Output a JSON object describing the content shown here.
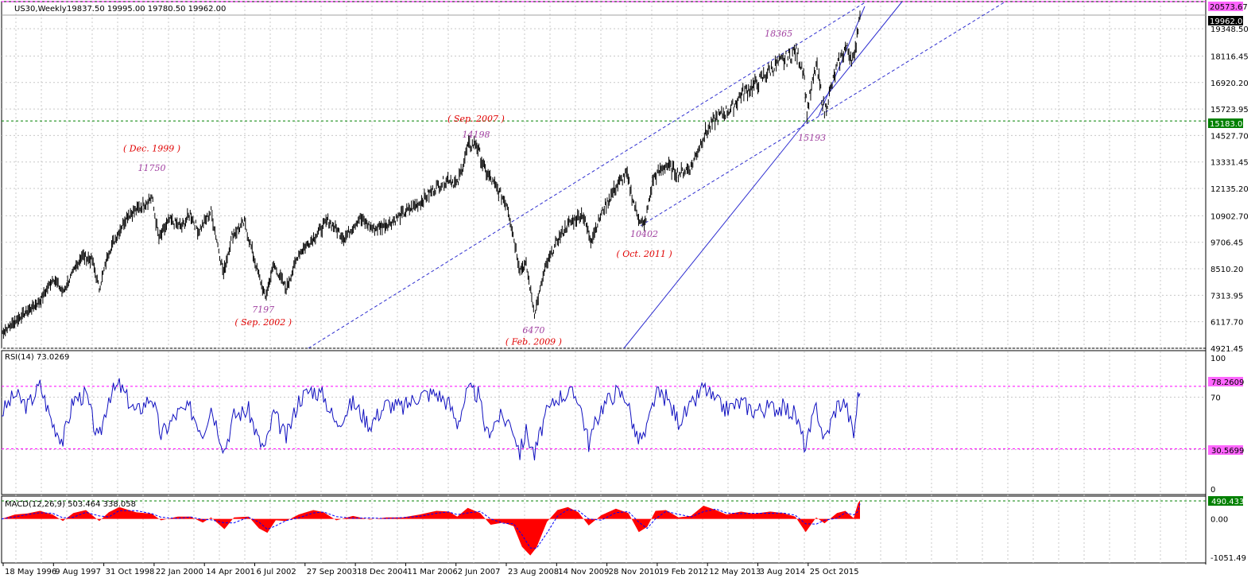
{
  "window": {
    "symbol_label": "US30,Weekly",
    "ohlc_text": "19837.50 19995.00 19780.50 19962.00"
  },
  "colors": {
    "background": "#ffffff",
    "grid": "#c0c0c0",
    "candles": "#000000",
    "trendline": "#2f2fd0",
    "resistance": "#ff00ff",
    "support": "#008000",
    "rsi_line": "#1010c0",
    "macd_hist": "#ff0000",
    "macd_signal": "#0000ff",
    "annotation_value": "#a040a0",
    "annotation_date": "#e00000",
    "price_tag_bg": "#000000",
    "green_tag_bg": "#008000",
    "magenta_tag_bg": "#ff66ff"
  },
  "chart_data": [
    {
      "type": "line",
      "title": "US30,Weekly",
      "ylim": [
        4921.45,
        20573.67
      ],
      "y_ticks": [
        "19348.50",
        "18116.45",
        "16920.20",
        "15723.95",
        "14527.70",
        "13331.45",
        "12135.20",
        "10902.70",
        "9706.45",
        "8510.20",
        "7313.95",
        "6117.70",
        "4921.45"
      ],
      "x_ticks": [
        "18 May 1996",
        "9 Aug 1997",
        "31 Oct 1998",
        "22 Jan 2000",
        "14 Apr 2001",
        "6 Jul 2002",
        "27 Sep 2003",
        "18 Dec 2004",
        "11 Mar 2006",
        "2 Jun 2007",
        "23 Aug 2008",
        "14 Nov 2009",
        "28 Nov 2010",
        "19 Feb 2012",
        "12 May 2013",
        "3 Aug 2014",
        "25 Oct 2015"
      ],
      "x_range": [
        1996.38,
        2016.95
      ],
      "series": [
        {
          "name": "",
          "points": [
            [
              1996.38,
              5600
            ],
            [
              1996.9,
              6450
            ],
            [
              1997.3,
              7050
            ],
            [
              1997.62,
              8100
            ],
            [
              1997.85,
              7450
            ],
            [
              1998.3,
              9100
            ],
            [
              1998.55,
              8900
            ],
            [
              1998.72,
              7600
            ],
            [
              1998.95,
              9300
            ],
            [
              1999.4,
              10950
            ],
            [
              1999.65,
              11200
            ],
            [
              1999.98,
              11750
            ],
            [
              2000.15,
              9850
            ],
            [
              2000.4,
              10700
            ],
            [
              2000.7,
              10400
            ],
            [
              2000.9,
              11000
            ],
            [
              2001.1,
              10200
            ],
            [
              2001.4,
              11100
            ],
            [
              2001.7,
              8300
            ],
            [
              2001.9,
              10000
            ],
            [
              2002.2,
              10600
            ],
            [
              2002.5,
              8500
            ],
            [
              2002.7,
              7200
            ],
            [
              2002.9,
              8700
            ],
            [
              2003.2,
              7600
            ],
            [
              2003.5,
              9200
            ],
            [
              2003.9,
              10000
            ],
            [
              2004.2,
              10700
            ],
            [
              2004.6,
              9900
            ],
            [
              2004.95,
              10800
            ],
            [
              2005.3,
              10300
            ],
            [
              2005.7,
              10600
            ],
            [
              2006.0,
              11000
            ],
            [
              2006.4,
              11500
            ],
            [
              2006.8,
              12200
            ],
            [
              2007.1,
              12600
            ],
            [
              2007.3,
              12300
            ],
            [
              2007.55,
              14000
            ],
            [
              2007.75,
              14198
            ],
            [
              2007.95,
              13000
            ],
            [
              2008.15,
              12400
            ],
            [
              2008.5,
              11400
            ],
            [
              2008.8,
              8500
            ],
            [
              2008.95,
              8700
            ],
            [
              2009.15,
              6470
            ],
            [
              2009.4,
              8500
            ],
            [
              2009.7,
              9800
            ],
            [
              2009.95,
              10500
            ],
            [
              2010.3,
              11000
            ],
            [
              2010.5,
              9800
            ],
            [
              2010.8,
              11200
            ],
            [
              2011.1,
              12200
            ],
            [
              2011.35,
              12800
            ],
            [
              2011.6,
              11000
            ],
            [
              2011.78,
              10402
            ],
            [
              2012.0,
              12600
            ],
            [
              2012.3,
              13200
            ],
            [
              2012.6,
              12800
            ],
            [
              2012.9,
              13100
            ],
            [
              2013.2,
              14500
            ],
            [
              2013.5,
              15300
            ],
            [
              2013.9,
              15800
            ],
            [
              2014.1,
              16400
            ],
            [
              2014.5,
              16900
            ],
            [
              2014.85,
              17600
            ],
            [
              2015.2,
              18000
            ],
            [
              2015.4,
              18365
            ],
            [
              2015.6,
              17500
            ],
            [
              2015.68,
              15600
            ],
            [
              2015.9,
              17700
            ],
            [
              2016.1,
              15600
            ],
            [
              2016.4,
              17600
            ],
            [
              2016.6,
              18500
            ],
            [
              2016.75,
              18100
            ],
            [
              2016.82,
              17900
            ],
            [
              2016.88,
              19200
            ],
            [
              2016.95,
              19962
            ]
          ]
        }
      ]
    },
    {
      "type": "line",
      "title": "RSI(14) 73.0269",
      "ylim": [
        0,
        100
      ],
      "y_ticks": [
        "100",
        "70",
        "0"
      ],
      "levels": [
        78.2609,
        30.5699
      ],
      "series": [
        {
          "name": "",
          "points": [
            [
              1996.38,
              58
            ],
            [
              1996.7,
              72
            ],
            [
              1997.0,
              63
            ],
            [
              1997.3,
              79
            ],
            [
              1997.6,
              50
            ],
            [
              1997.85,
              37
            ],
            [
              1998.1,
              68
            ],
            [
              1998.4,
              72
            ],
            [
              1998.7,
              36
            ],
            [
              1998.95,
              71
            ],
            [
              1999.2,
              79
            ],
            [
              1999.6,
              58
            ],
            [
              1999.98,
              71
            ],
            [
              2000.2,
              41
            ],
            [
              2000.6,
              58
            ],
            [
              2000.9,
              61
            ],
            [
              2001.2,
              43
            ],
            [
              2001.4,
              63
            ],
            [
              2001.72,
              30
            ],
            [
              2001.95,
              56
            ],
            [
              2002.3,
              60
            ],
            [
              2002.55,
              36
            ],
            [
              2002.7,
              31
            ],
            [
              2002.9,
              58
            ],
            [
              2003.2,
              39
            ],
            [
              2003.5,
              68
            ],
            [
              2003.8,
              76
            ],
            [
              2004.1,
              71
            ],
            [
              2004.4,
              49
            ],
            [
              2004.8,
              66
            ],
            [
              2005.2,
              49
            ],
            [
              2005.6,
              65
            ],
            [
              2006.0,
              62
            ],
            [
              2006.4,
              72
            ],
            [
              2006.8,
              73
            ],
            [
              2007.1,
              65
            ],
            [
              2007.3,
              50
            ],
            [
              2007.55,
              75
            ],
            [
              2007.8,
              72
            ],
            [
              2008.0,
              42
            ],
            [
              2008.3,
              55
            ],
            [
              2008.6,
              50
            ],
            [
              2008.8,
              28
            ],
            [
              2008.95,
              44
            ],
            [
              2009.15,
              26
            ],
            [
              2009.4,
              55
            ],
            [
              2009.7,
              70
            ],
            [
              2009.95,
              73
            ],
            [
              2010.2,
              70
            ],
            [
              2010.45,
              35
            ],
            [
              2010.75,
              62
            ],
            [
              2011.1,
              74
            ],
            [
              2011.35,
              70
            ],
            [
              2011.6,
              38
            ],
            [
              2011.8,
              40
            ],
            [
              2012.05,
              72
            ],
            [
              2012.3,
              70
            ],
            [
              2012.6,
              52
            ],
            [
              2012.9,
              62
            ],
            [
              2013.2,
              78
            ],
            [
              2013.5,
              66
            ],
            [
              2013.75,
              61
            ],
            [
              2014.1,
              66
            ],
            [
              2014.4,
              60
            ],
            [
              2014.8,
              62
            ],
            [
              2015.1,
              62
            ],
            [
              2015.4,
              57
            ],
            [
              2015.65,
              31
            ],
            [
              2015.9,
              63
            ],
            [
              2016.1,
              37
            ],
            [
              2016.4,
              64
            ],
            [
              2016.6,
              66
            ],
            [
              2016.8,
              41
            ],
            [
              2016.9,
              70
            ],
            [
              2016.95,
              73
            ]
          ]
        }
      ]
    },
    {
      "type": "area",
      "title": "MACD(12,26,9) 503.464 338.058",
      "ylim": [
        -1051.49,
        490.433
      ],
      "y_ticks": [
        "0.00",
        "-1051.49"
      ],
      "levels": [
        490.433
      ],
      "series": [
        {
          "name": "",
          "points": [
            [
              1996.38,
              0
            ],
            [
              1996.7,
              120
            ],
            [
              1997.0,
              150
            ],
            [
              1997.3,
              220
            ],
            [
              1997.6,
              120
            ],
            [
              1997.85,
              -60
            ],
            [
              1998.1,
              160
            ],
            [
              1998.4,
              240
            ],
            [
              1998.72,
              -60
            ],
            [
              1998.95,
              180
            ],
            [
              1999.2,
              320
            ],
            [
              1999.6,
              180
            ],
            [
              1999.98,
              140
            ],
            [
              2000.2,
              -40
            ],
            [
              2000.6,
              60
            ],
            [
              2000.9,
              60
            ],
            [
              2001.2,
              -100
            ],
            [
              2001.4,
              40
            ],
            [
              2001.72,
              -280
            ],
            [
              2001.95,
              40
            ],
            [
              2002.3,
              60
            ],
            [
              2002.55,
              -260
            ],
            [
              2002.75,
              -380
            ],
            [
              2002.95,
              -40
            ],
            [
              2003.2,
              -60
            ],
            [
              2003.5,
              120
            ],
            [
              2003.85,
              240
            ],
            [
              2004.1,
              180
            ],
            [
              2004.4,
              -40
            ],
            [
              2004.8,
              80
            ],
            [
              2005.2,
              -20
            ],
            [
              2005.6,
              40
            ],
            [
              2006.0,
              40
            ],
            [
              2006.4,
              120
            ],
            [
              2006.8,
              220
            ],
            [
              2007.1,
              200
            ],
            [
              2007.3,
              60
            ],
            [
              2007.55,
              300
            ],
            [
              2007.85,
              160
            ],
            [
              2008.1,
              -160
            ],
            [
              2008.4,
              -100
            ],
            [
              2008.65,
              -200
            ],
            [
              2008.85,
              -760
            ],
            [
              2009.05,
              -1000
            ],
            [
              2009.2,
              -780
            ],
            [
              2009.45,
              -80
            ],
            [
              2009.7,
              240
            ],
            [
              2009.95,
              320
            ],
            [
              2010.2,
              180
            ],
            [
              2010.45,
              -180
            ],
            [
              2010.75,
              100
            ],
            [
              2011.1,
              280
            ],
            [
              2011.4,
              160
            ],
            [
              2011.65,
              -360
            ],
            [
              2011.85,
              -220
            ],
            [
              2012.05,
              220
            ],
            [
              2012.3,
              240
            ],
            [
              2012.6,
              40
            ],
            [
              2012.9,
              80
            ],
            [
              2013.2,
              360
            ],
            [
              2013.5,
              240
            ],
            [
              2013.75,
              120
            ],
            [
              2014.1,
              200
            ],
            [
              2014.4,
              140
            ],
            [
              2014.8,
              200
            ],
            [
              2015.1,
              160
            ],
            [
              2015.4,
              60
            ],
            [
              2015.65,
              -360
            ],
            [
              2015.9,
              40
            ],
            [
              2016.1,
              -120
            ],
            [
              2016.4,
              160
            ],
            [
              2016.6,
              220
            ],
            [
              2016.8,
              20
            ],
            [
              2016.9,
              420
            ],
            [
              2016.95,
              503
            ]
          ]
        }
      ]
    }
  ],
  "annotations": [
    {
      "label": "11750",
      "kind": "value",
      "x": 1999.98,
      "y": 12920
    },
    {
      "label": "( Dec. 1999 )",
      "kind": "date",
      "x": 1999.98,
      "y": 13800
    },
    {
      "label": "( Sep. 2007 )",
      "kind": "date",
      "x": 2007.75,
      "y": 15150
    },
    {
      "label": "14198",
      "kind": "value",
      "x": 2007.75,
      "y": 14430
    },
    {
      "label": "7197",
      "kind": "value",
      "x": 2002.65,
      "y": 6530
    },
    {
      "label": "( Sep. 2002 )",
      "kind": "date",
      "x": 2002.65,
      "y": 5960
    },
    {
      "label": "6470",
      "kind": "value",
      "x": 2009.13,
      "y": 5600
    },
    {
      "label": "( Feb. 2009 )",
      "kind": "date",
      "x": 2009.13,
      "y": 5080
    },
    {
      "label": "10402",
      "kind": "value",
      "x": 2011.78,
      "y": 9950
    },
    {
      "label": "( Oct. 2011 )",
      "kind": "date",
      "x": 2011.78,
      "y": 9050
    },
    {
      "label": "18365",
      "kind": "value",
      "x": 2015.0,
      "y": 19000
    },
    {
      "label": "15193",
      "kind": "value",
      "x": 2015.8,
      "y": 14300
    }
  ],
  "levels_main": {
    "resistance": "20573.67",
    "current": "19962.00",
    "support": "15183.03"
  },
  "rsi_tags": {
    "upper": "78.2609",
    "lower": "30.5699"
  },
  "macd_tag": "490.433"
}
